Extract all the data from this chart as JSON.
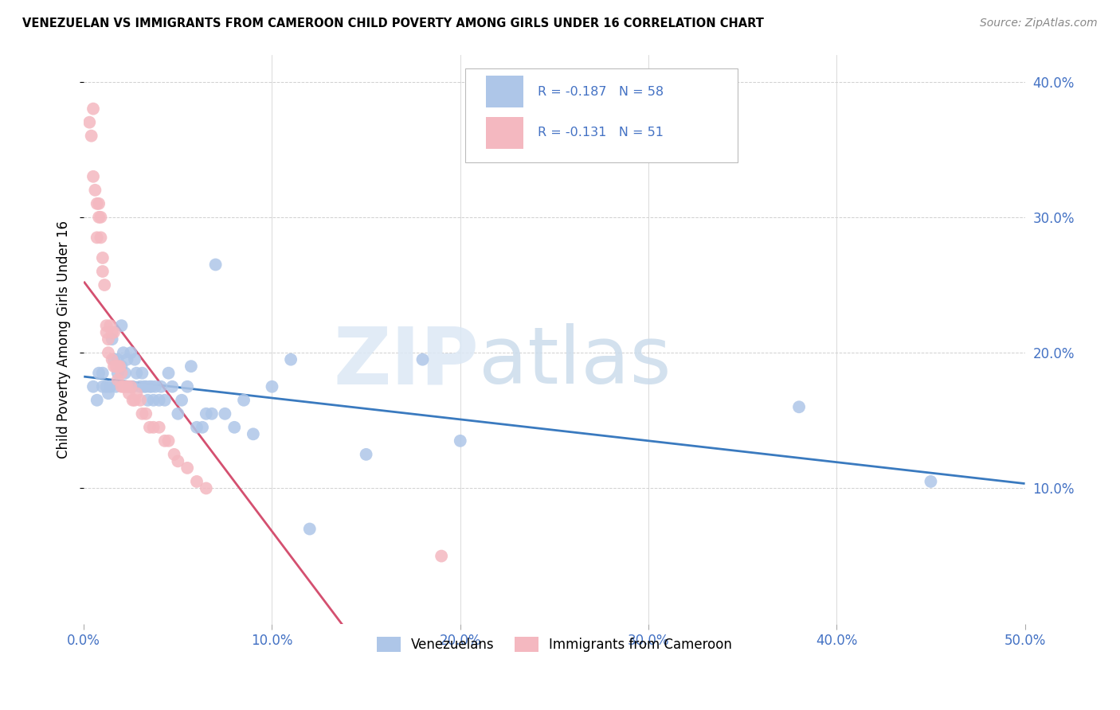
{
  "title": "VENEZUELAN VS IMMIGRANTS FROM CAMEROON CHILD POVERTY AMONG GIRLS UNDER 16 CORRELATION CHART",
  "source": "Source: ZipAtlas.com",
  "ylabel": "Child Poverty Among Girls Under 16",
  "xlim": [
    0.0,
    0.5
  ],
  "ylim": [
    0.0,
    0.42
  ],
  "xticks": [
    0.0,
    0.1,
    0.2,
    0.3,
    0.4,
    0.5
  ],
  "yticks": [
    0.1,
    0.2,
    0.3,
    0.4
  ],
  "xtick_labels": [
    "0.0%",
    "10.0%",
    "20.0%",
    "30.0%",
    "40.0%",
    "50.0%"
  ],
  "ytick_labels": [
    "10.0%",
    "20.0%",
    "30.0%",
    "40.0%"
  ],
  "legend_label1": "Venezuelans",
  "legend_label2": "Immigrants from Cameroon",
  "r1": -0.187,
  "n1": 58,
  "r2": -0.131,
  "n2": 51,
  "color1": "#aec6e8",
  "color2": "#f4b8c0",
  "line_color1": "#3a7abf",
  "line_color2": "#d45070",
  "text_color": "#4472c4",
  "venezuelan_x": [
    0.005,
    0.007,
    0.008,
    0.01,
    0.01,
    0.012,
    0.013,
    0.014,
    0.015,
    0.016,
    0.017,
    0.018,
    0.018,
    0.02,
    0.02,
    0.021,
    0.022,
    0.023,
    0.024,
    0.025,
    0.026,
    0.027,
    0.028,
    0.03,
    0.031,
    0.032,
    0.033,
    0.034,
    0.035,
    0.036,
    0.037,
    0.038,
    0.04,
    0.041,
    0.043,
    0.045,
    0.047,
    0.05,
    0.052,
    0.055,
    0.057,
    0.06,
    0.063,
    0.065,
    0.068,
    0.07,
    0.075,
    0.08,
    0.085,
    0.09,
    0.1,
    0.11,
    0.12,
    0.15,
    0.18,
    0.2,
    0.38,
    0.45
  ],
  "venezuelan_y": [
    0.175,
    0.165,
    0.185,
    0.175,
    0.185,
    0.175,
    0.17,
    0.175,
    0.21,
    0.195,
    0.175,
    0.195,
    0.185,
    0.19,
    0.22,
    0.2,
    0.185,
    0.195,
    0.175,
    0.2,
    0.175,
    0.195,
    0.185,
    0.175,
    0.185,
    0.175,
    0.175,
    0.165,
    0.175,
    0.175,
    0.165,
    0.175,
    0.165,
    0.175,
    0.165,
    0.185,
    0.175,
    0.155,
    0.165,
    0.175,
    0.19,
    0.145,
    0.145,
    0.155,
    0.155,
    0.265,
    0.155,
    0.145,
    0.165,
    0.14,
    0.175,
    0.195,
    0.07,
    0.125,
    0.195,
    0.135,
    0.16,
    0.105
  ],
  "cameroon_x": [
    0.003,
    0.004,
    0.005,
    0.005,
    0.006,
    0.007,
    0.007,
    0.008,
    0.008,
    0.009,
    0.009,
    0.01,
    0.01,
    0.011,
    0.012,
    0.012,
    0.013,
    0.013,
    0.014,
    0.015,
    0.015,
    0.016,
    0.016,
    0.017,
    0.018,
    0.018,
    0.019,
    0.02,
    0.02,
    0.021,
    0.022,
    0.023,
    0.024,
    0.025,
    0.026,
    0.027,
    0.028,
    0.03,
    0.031,
    0.033,
    0.035,
    0.037,
    0.04,
    0.043,
    0.045,
    0.048,
    0.05,
    0.055,
    0.06,
    0.065,
    0.19
  ],
  "cameroon_y": [
    0.37,
    0.36,
    0.38,
    0.33,
    0.32,
    0.31,
    0.285,
    0.3,
    0.31,
    0.3,
    0.285,
    0.27,
    0.26,
    0.25,
    0.22,
    0.215,
    0.21,
    0.2,
    0.22,
    0.215,
    0.195,
    0.215,
    0.19,
    0.19,
    0.19,
    0.18,
    0.19,
    0.185,
    0.175,
    0.175,
    0.175,
    0.175,
    0.17,
    0.175,
    0.165,
    0.165,
    0.17,
    0.165,
    0.155,
    0.155,
    0.145,
    0.145,
    0.145,
    0.135,
    0.135,
    0.125,
    0.12,
    0.115,
    0.105,
    0.1,
    0.05
  ]
}
